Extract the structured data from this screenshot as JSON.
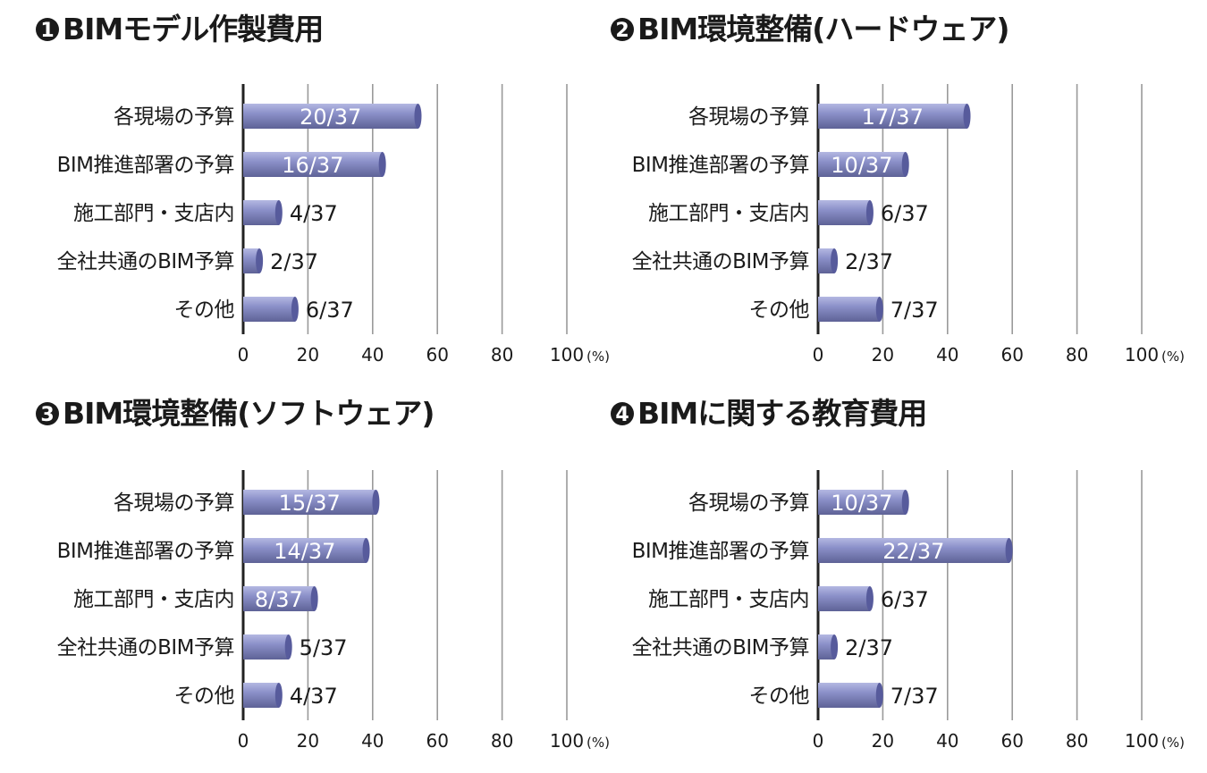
{
  "colors": {
    "bar_top": "#b4b8e2",
    "bar_mid": "#8a8fc8",
    "bar_bottom": "#5e6296",
    "bar_cap": "#575b9c",
    "title_marker": "#1a1a1a"
  },
  "chart_data": [
    {
      "type": "bar",
      "orientation": "horizontal",
      "number": "1",
      "title": "BIMモデル作製費用",
      "categories": [
        "各現場の予算",
        "BIM推進部署の予算",
        "施工部門・支店内",
        "全社共通のBIM予算",
        "その他"
      ],
      "values": [
        54,
        43,
        11,
        5,
        16
      ],
      "data_labels": [
        "20/37",
        "16/37",
        "4/37",
        "2/37",
        "6/37"
      ],
      "xlim": [
        0,
        100
      ],
      "xticks": [
        "0",
        "20",
        "40",
        "60",
        "80",
        "100"
      ],
      "unit": "(%)",
      "grid": true
    },
    {
      "type": "bar",
      "orientation": "horizontal",
      "number": "2",
      "title": "BIM環境整備(ハードウェア)",
      "categories": [
        "各現場の予算",
        "BIM推進部署の予算",
        "施工部門・支店内",
        "全社共通のBIM予算",
        "その他"
      ],
      "values": [
        46,
        27,
        16,
        5,
        19
      ],
      "data_labels": [
        "17/37",
        "10/37",
        "6/37",
        "2/37",
        "7/37"
      ],
      "xlim": [
        0,
        100
      ],
      "xticks": [
        "0",
        "20",
        "40",
        "60",
        "80",
        "100"
      ],
      "unit": "(%)",
      "grid": true
    },
    {
      "type": "bar",
      "orientation": "horizontal",
      "number": "3",
      "title": "BIM環境整備(ソフトウェア)",
      "categories": [
        "各現場の予算",
        "BIM推進部署の予算",
        "施工部門・支店内",
        "全社共通のBIM予算",
        "その他"
      ],
      "values": [
        41,
        38,
        22,
        14,
        11
      ],
      "data_labels": [
        "15/37",
        "14/37",
        "8/37",
        "5/37",
        "4/37"
      ],
      "xlim": [
        0,
        100
      ],
      "xticks": [
        "0",
        "20",
        "40",
        "60",
        "80",
        "100"
      ],
      "unit": "(%)",
      "grid": true
    },
    {
      "type": "bar",
      "orientation": "horizontal",
      "number": "4",
      "title": "BIMに関する教育費用",
      "categories": [
        "各現場の予算",
        "BIM推進部署の予算",
        "施工部門・支店内",
        "全社共通のBIM予算",
        "その他"
      ],
      "values": [
        27,
        59,
        16,
        5,
        19
      ],
      "data_labels": [
        "10/37",
        "22/37",
        "6/37",
        "2/37",
        "7/37"
      ],
      "xlim": [
        0,
        100
      ],
      "xticks": [
        "0",
        "20",
        "40",
        "60",
        "80",
        "100"
      ],
      "unit": "(%)",
      "grid": true
    }
  ]
}
